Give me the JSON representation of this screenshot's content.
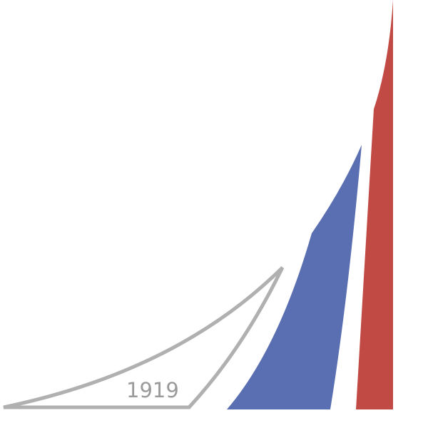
{
  "logo": {
    "year": "1919",
    "colors": {
      "outline": "#b0b0b0",
      "year_text": "#9a9a9a",
      "blue": "#5a6fb2",
      "red": "#c24a45",
      "background": "#ffffff"
    }
  }
}
